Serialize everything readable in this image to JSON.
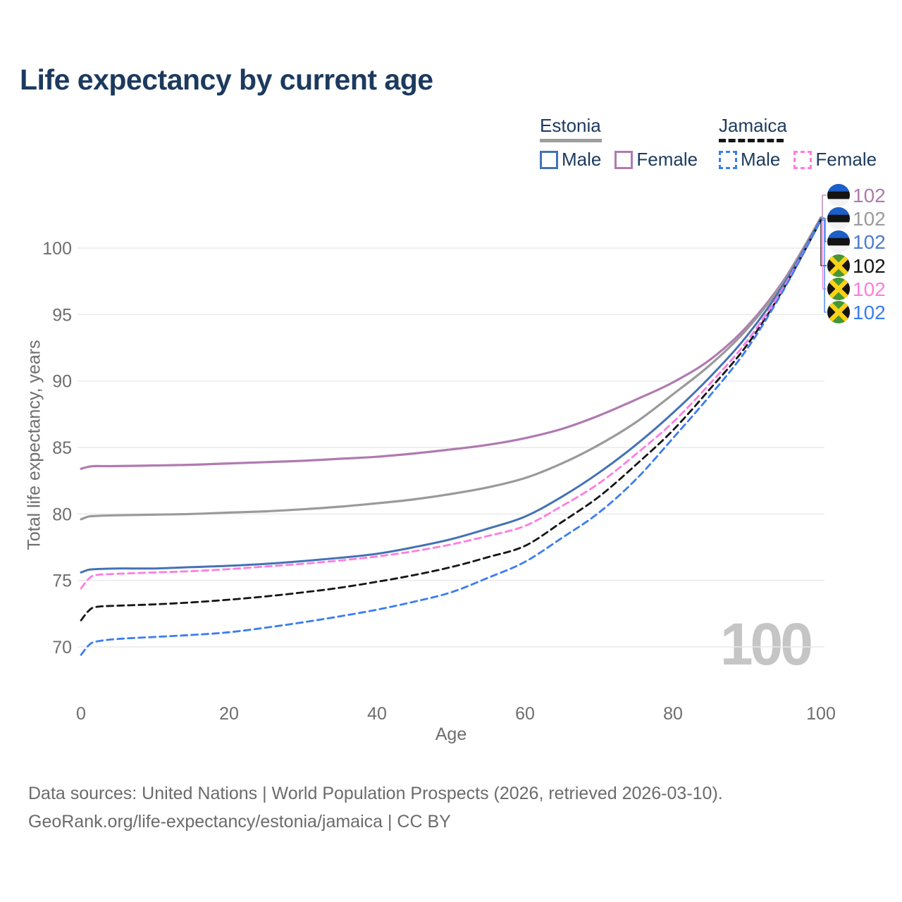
{
  "title": "Life expectancy by current age",
  "watermark": "100",
  "legend": {
    "groups": [
      {
        "label": "Estonia",
        "style": "solid",
        "underline_color": "#9e9e9e",
        "items": [
          {
            "label": "Male",
            "color": "#4472b4",
            "dashed": false
          },
          {
            "label": "Female",
            "color": "#b07ab0",
            "dashed": false
          }
        ]
      },
      {
        "label": "Jamaica",
        "style": "dashed",
        "underline_color": "#151515",
        "items": [
          {
            "label": "Male",
            "color": "#3b7df0",
            "dashed": true
          },
          {
            "label": "Female",
            "color": "#ff7ce0",
            "dashed": true
          }
        ]
      }
    ]
  },
  "chart_data": {
    "type": "line",
    "title": "Life expectancy by current age",
    "xlabel": "Age",
    "ylabel": "Total life expectancy, years",
    "xticks": [
      0,
      20,
      40,
      60,
      80,
      100
    ],
    "yticks": [
      70,
      75,
      80,
      85,
      90,
      95,
      100
    ],
    "xlim": [
      0,
      100
    ],
    "ylim": [
      69,
      103
    ],
    "grid": "horizontal",
    "legend_position": "top-right",
    "x": [
      0,
      1,
      2,
      5,
      10,
      15,
      20,
      25,
      30,
      35,
      40,
      45,
      50,
      55,
      60,
      65,
      70,
      75,
      80,
      85,
      90,
      95,
      100
    ],
    "series": [
      {
        "name": "Estonia Female",
        "country": "Estonia",
        "sex": "Female",
        "color": "#b07ab0",
        "dashed": false,
        "values": [
          83.4,
          83.55,
          83.6,
          83.6,
          83.65,
          83.7,
          83.8,
          83.9,
          84.0,
          84.15,
          84.3,
          84.55,
          84.85,
          85.2,
          85.7,
          86.4,
          87.4,
          88.6,
          89.9,
          91.6,
          94.1,
          97.6,
          102.3
        ]
      },
      {
        "name": "Estonia Total",
        "country": "Estonia",
        "sex": "Both",
        "color": "#9a9a9a",
        "dashed": false,
        "values": [
          79.6,
          79.8,
          79.85,
          79.9,
          79.95,
          80.0,
          80.1,
          80.2,
          80.35,
          80.55,
          80.8,
          81.1,
          81.5,
          82.0,
          82.7,
          83.8,
          85.2,
          86.9,
          89.0,
          91.2,
          93.9,
          97.5,
          102.3
        ]
      },
      {
        "name": "Estonia Male",
        "country": "Estonia",
        "sex": "Male",
        "color": "#4472b4",
        "dashed": false,
        "values": [
          75.6,
          75.8,
          75.85,
          75.9,
          75.9,
          76.0,
          76.1,
          76.25,
          76.45,
          76.7,
          77.0,
          77.5,
          78.1,
          78.9,
          79.8,
          81.3,
          83.1,
          85.2,
          87.6,
          90.3,
          93.4,
          97.3,
          102.2
        ]
      },
      {
        "name": "Jamaica Total",
        "country": "Jamaica",
        "sex": "Both",
        "color": "#151515",
        "dashed": true,
        "values": [
          72.0,
          72.7,
          73.0,
          73.1,
          73.2,
          73.35,
          73.55,
          73.8,
          74.1,
          74.45,
          74.9,
          75.4,
          76.0,
          76.75,
          77.6,
          79.4,
          81.3,
          83.7,
          86.3,
          89.4,
          92.7,
          97.0,
          102.1
        ]
      },
      {
        "name": "Jamaica Female",
        "country": "Jamaica",
        "sex": "Female",
        "color": "#ff7ce0",
        "dashed": true,
        "values": [
          74.4,
          75.1,
          75.4,
          75.5,
          75.6,
          75.7,
          75.85,
          76.05,
          76.25,
          76.5,
          76.8,
          77.2,
          77.7,
          78.35,
          79.1,
          80.6,
          82.3,
          84.5,
          86.9,
          89.8,
          93.0,
          97.1,
          102.1
        ]
      },
      {
        "name": "Jamaica Male",
        "country": "Jamaica",
        "sex": "Male",
        "color": "#3b7df0",
        "dashed": true,
        "values": [
          69.4,
          70.1,
          70.4,
          70.6,
          70.75,
          70.9,
          71.1,
          71.45,
          71.85,
          72.3,
          72.8,
          73.4,
          74.1,
          75.2,
          76.4,
          78.2,
          80.1,
          82.6,
          85.7,
          88.9,
          92.4,
          96.9,
          102.1
        ]
      }
    ],
    "end_labels": [
      {
        "value": "102",
        "flag": "estonia",
        "color": "#b07ab0",
        "series": "Estonia Female"
      },
      {
        "value": "102",
        "flag": "estonia",
        "color": "#9a9a9a",
        "series": "Estonia Total"
      },
      {
        "value": "102",
        "flag": "estonia",
        "color": "#4c7bd0",
        "series": "Estonia Male"
      },
      {
        "value": "102",
        "flag": "jamaica",
        "color": "#151515",
        "series": "Jamaica Total"
      },
      {
        "value": "102",
        "flag": "jamaica",
        "color": "#ff7ce0",
        "series": "Jamaica Female"
      },
      {
        "value": "102",
        "flag": "jamaica",
        "color": "#3b7df0",
        "series": "Jamaica Male"
      }
    ]
  },
  "footer": {
    "line1": "Data sources: United Nations | World Population Prospects (2026, retrieved 2026-03-10).",
    "line2": "GeoRank.org/life-expectancy/estonia/jamaica | CC BY"
  }
}
